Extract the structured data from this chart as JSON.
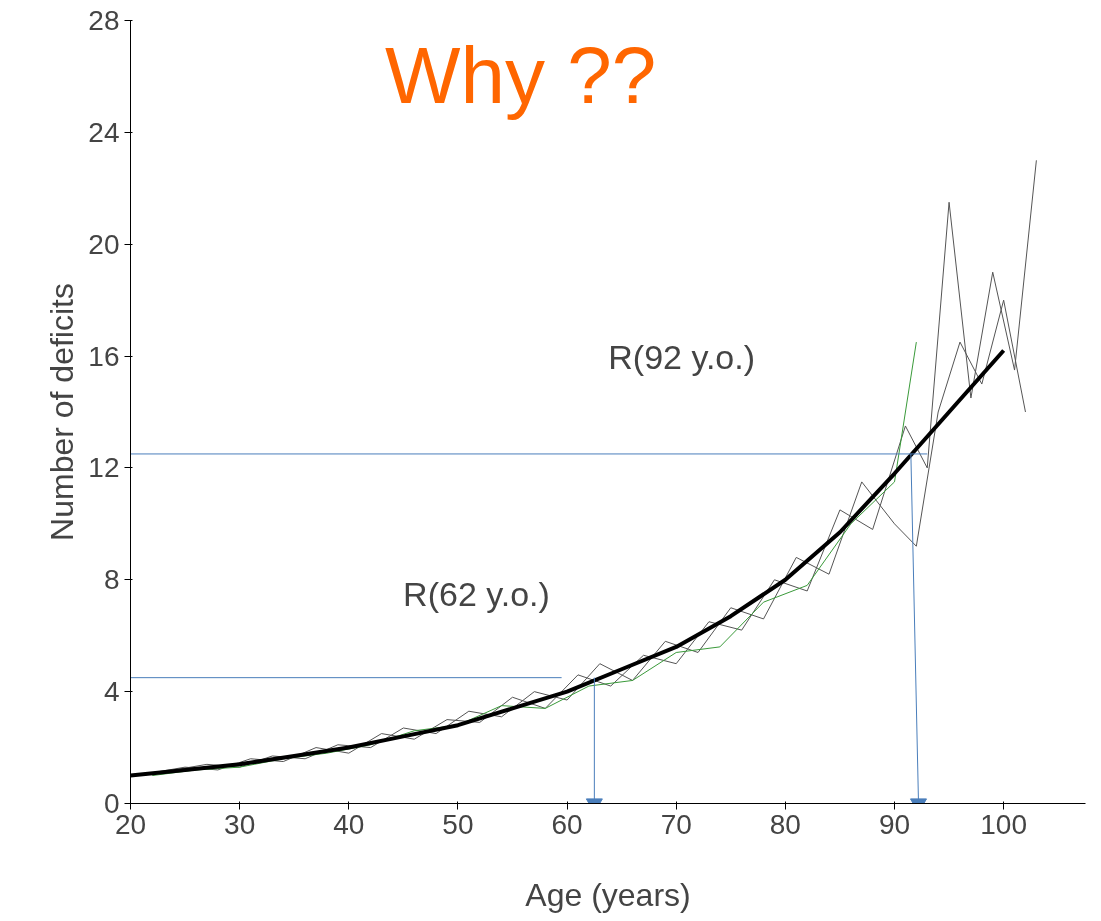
{
  "chart_data": {
    "type": "line",
    "title": "Why ??",
    "xlabel": "Age (years)",
    "ylabel": "Number of deficits",
    "xlim": [
      20,
      107.5
    ],
    "ylim": [
      0,
      28
    ],
    "xticks": [
      20,
      30,
      40,
      50,
      60,
      70,
      80,
      90,
      100
    ],
    "yticks": [
      0,
      4,
      8,
      12,
      16,
      20,
      24,
      28
    ],
    "grid": false,
    "annotations": [
      "R(62 y.o.)",
      "R(92 y.o.)"
    ],
    "series": [
      {
        "color": "#555555",
        "x": [
          22,
          25,
          28,
          31,
          34,
          37,
          40,
          43,
          46,
          49,
          52,
          55,
          58,
          61,
          64,
          67,
          70,
          73,
          76,
          79,
          82,
          85,
          88,
          91,
          93,
          95,
          97,
          99,
          101,
          103
        ],
        "values": [
          1.1,
          1.3,
          1.2,
          1.6,
          1.5,
          2.0,
          1.8,
          2.5,
          2.3,
          3.0,
          2.9,
          3.8,
          3.4,
          4.6,
          4.2,
          5.3,
          5.0,
          6.5,
          6.2,
          8.0,
          7.6,
          10.5,
          9.8,
          13.5,
          12.0,
          21.5,
          14.5,
          19.0,
          15.5,
          23.0
        ]
      },
      {
        "color": "#555555",
        "x": [
          21,
          24,
          27,
          30,
          33,
          36,
          39,
          42,
          45,
          48,
          51,
          54,
          57,
          60,
          63,
          66,
          69,
          72,
          75,
          78,
          81,
          84,
          87,
          90,
          92,
          94,
          96,
          98,
          100,
          102
        ],
        "values": [
          1.0,
          1.2,
          1.4,
          1.3,
          1.7,
          1.6,
          2.1,
          2.0,
          2.7,
          2.5,
          3.3,
          3.1,
          4.0,
          3.7,
          5.0,
          4.4,
          5.8,
          5.4,
          7.0,
          6.6,
          8.8,
          8.2,
          11.5,
          10.0,
          9.2,
          14.0,
          16.5,
          15.0,
          18.0,
          14.0
        ]
      },
      {
        "color": "#3a9a3a",
        "x": [
          22,
          26,
          30,
          34,
          38,
          42,
          46,
          50,
          54,
          58,
          62,
          66,
          70,
          74,
          78,
          82,
          86,
          90,
          92
        ],
        "values": [
          1.0,
          1.2,
          1.3,
          1.6,
          1.8,
          2.1,
          2.6,
          2.8,
          3.5,
          3.4,
          4.2,
          4.4,
          5.4,
          5.6,
          7.2,
          7.8,
          10.0,
          11.5,
          16.5
        ]
      },
      {
        "color": "#000000",
        "x": [
          20,
          25,
          30,
          35,
          40,
          45,
          50,
          55,
          60,
          65,
          70,
          75,
          80,
          85,
          90,
          95,
          100
        ],
        "values": [
          1.0,
          1.2,
          1.4,
          1.7,
          2.0,
          2.4,
          2.8,
          3.4,
          4.0,
          4.8,
          5.6,
          6.7,
          8.0,
          9.7,
          11.8,
          14.0,
          16.2
        ]
      },
      {
        "color": "#4a7ebb",
        "x": [
          20,
          59.5
        ],
        "values": [
          4.5,
          4.5
        ]
      },
      {
        "color": "#4a7ebb",
        "x": [
          20,
          93
        ],
        "values": [
          12.5,
          12.5
        ]
      },
      {
        "color": "#4a7ebb",
        "marker": "triangle",
        "x": [
          62.5,
          62.5
        ],
        "values": [
          4.5,
          0
        ]
      },
      {
        "color": "#4a7ebb",
        "marker": "triangle",
        "x": [
          91.5,
          92.2
        ],
        "values": [
          12.5,
          0
        ]
      }
    ]
  }
}
